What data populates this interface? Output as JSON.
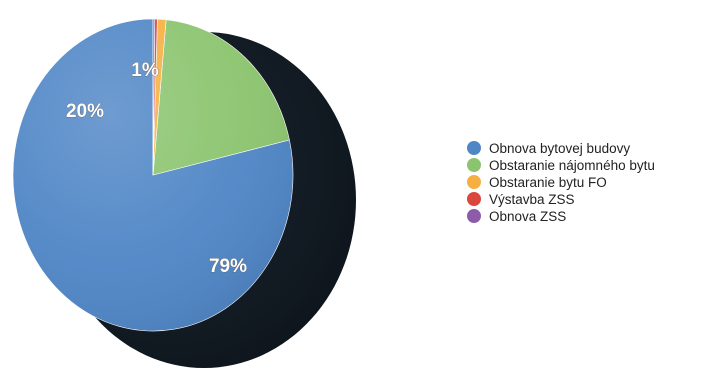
{
  "chart_data": {
    "type": "pie",
    "title": "",
    "categories": [
      "Obnova bytovej budovy",
      "Obstaranie nájomného bytu",
      "Obstaranie bytu FO",
      "Výstavba ZSS",
      "Obnova ZSS"
    ],
    "values": [
      79,
      20,
      1,
      0.3,
      0.2
    ],
    "data_labels": [
      "79%",
      "20%",
      "1%",
      "",
      ""
    ],
    "colors": [
      "#4f86c6",
      "#8bc46e",
      "#f5b041",
      "#d9473f",
      "#8e5ba8"
    ],
    "legend_position": "right"
  }
}
